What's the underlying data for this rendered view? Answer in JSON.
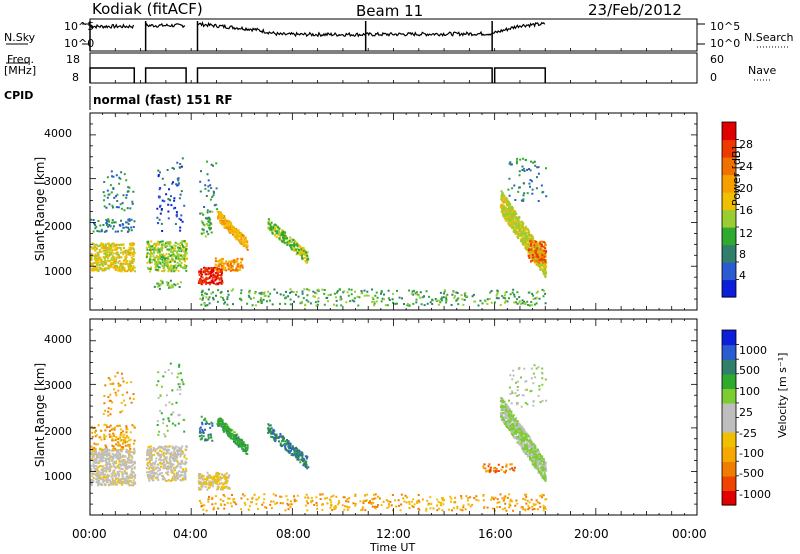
{
  "header": {
    "station": "Kodiak (fitACF)",
    "beam": "Beam 11",
    "date": "23/Feb/2012"
  },
  "side_labels": {
    "nsky": "N.Sky",
    "freq": "Freq.",
    "freq_unit": "[MHz]",
    "cpid": "CPID",
    "nsearch": "N.Search",
    "nave": "Nave"
  },
  "cpid_text": "normal (fast) 151 RF",
  "chart_data": [
    {
      "type": "line",
      "panel": "noise",
      "left_axis_label": "N.Sky",
      "right_axis_label": "N.Search",
      "left_ticks": [
        "10^5",
        "10^0"
      ],
      "right_ticks": [
        "10^5",
        "10^0"
      ],
      "x_range_hours": [
        0,
        24
      ],
      "segments_hours": [
        [
          0.0,
          1.75
        ],
        [
          2.2,
          3.8
        ],
        [
          4.25,
          10.9
        ],
        [
          10.9,
          15.9
        ],
        [
          15.9,
          18.0
        ]
      ],
      "nsky_level_fraction_by_hour": [
        [
          0.0,
          0.82
        ],
        [
          1.75,
          0.82
        ],
        [
          2.2,
          0.85
        ],
        [
          3.8,
          0.85
        ],
        [
          4.25,
          0.9
        ],
        [
          6.5,
          0.72
        ],
        [
          7.5,
          0.55
        ],
        [
          10.9,
          0.55
        ],
        [
          15.9,
          0.58
        ],
        [
          17.0,
          0.85
        ],
        [
          18.0,
          0.9
        ]
      ]
    },
    {
      "type": "line",
      "panel": "frequency",
      "left_axis_label": "Freq. [MHz]",
      "right_axis_label": "Nave",
      "left_ticks": [
        "18",
        "8"
      ],
      "right_ticks": [
        "60",
        "0"
      ],
      "x_range_hours": [
        0,
        24
      ],
      "freq_mhz": 13,
      "nave_segments_hours": [
        [
          0.0,
          1.75
        ],
        [
          2.2,
          3.8
        ],
        [
          4.25,
          15.9
        ],
        [
          16.0,
          18.0
        ]
      ]
    },
    {
      "type": "heatmap",
      "panel": "power",
      "xlabel": "",
      "ylabel": "Slant Range [km]",
      "xlim_hours": [
        0,
        24
      ],
      "ylim_km": [
        0,
        4500
      ],
      "yticks": [
        1000,
        2000,
        3000,
        4000
      ],
      "colorbar_label": "Power [dB]",
      "colorbar_ticks": [
        "4",
        "8",
        "12",
        "16",
        "20",
        "24",
        "28"
      ],
      "colorbar_colors": [
        "#0b1fd8",
        "#2a5bd0",
        "#2f7f6a",
        "#2faa2f",
        "#9acd32",
        "#f0c000",
        "#f6a000",
        "#f07000",
        "#ee3a00",
        "#e00000"
      ],
      "scatter_regions": [
        {
          "t0": 0.0,
          "t1": 1.75,
          "r0": 900,
          "r1": 1550,
          "density": 0.9,
          "level": 5
        },
        {
          "t0": 0.0,
          "t1": 1.75,
          "r0": 1800,
          "r1": 2100,
          "density": 0.3,
          "level": 2
        },
        {
          "t0": 0.5,
          "t1": 1.7,
          "r0": 2300,
          "r1": 3200,
          "density": 0.12,
          "level": 2
        },
        {
          "t0": 2.2,
          "t1": 3.8,
          "r0": 900,
          "r1": 1600,
          "density": 0.75,
          "level": 4
        },
        {
          "t0": 2.4,
          "t1": 3.6,
          "r0": 500,
          "r1": 700,
          "density": 0.3,
          "level": 3
        },
        {
          "t0": 2.6,
          "t1": 3.7,
          "r0": 1800,
          "r1": 3500,
          "density": 0.1,
          "level": 1
        },
        {
          "t0": 4.25,
          "t1": 5.2,
          "r0": 600,
          "r1": 1000,
          "density": 0.95,
          "level": 9
        },
        {
          "t0": 4.9,
          "t1": 6.0,
          "r0": 900,
          "r1": 1200,
          "density": 0.8,
          "level": 6
        },
        {
          "t0": 4.3,
          "t1": 4.8,
          "r0": 1700,
          "r1": 2300,
          "density": 0.35,
          "level": 3
        },
        {
          "t0": 4.3,
          "t1": 5.0,
          "r0": 2300,
          "r1": 3500,
          "density": 0.08,
          "level": 2
        },
        {
          "t0": 5.0,
          "t1": 6.2,
          "r0": 1500,
          "r1": 2200,
          "band": true,
          "density": 0.7,
          "level": 6
        },
        {
          "t0": 7.0,
          "t1": 8.6,
          "r0": 1200,
          "r1": 2000,
          "band": true,
          "density": 0.45,
          "level": 4
        },
        {
          "t0": 4.3,
          "t1": 18.0,
          "r0": 120,
          "r1": 500,
          "density": 0.18,
          "level": 3
        },
        {
          "t0": 16.2,
          "t1": 18.0,
          "r0": 1000,
          "r1": 2500,
          "band": true,
          "density": 0.7,
          "level": 5
        },
        {
          "t0": 16.5,
          "t1": 18.0,
          "r0": 2500,
          "r1": 3500,
          "density": 0.1,
          "level": 2
        },
        {
          "t0": 17.3,
          "t1": 18.0,
          "r0": 1100,
          "r1": 1600,
          "density": 0.8,
          "level": 7
        }
      ]
    },
    {
      "type": "heatmap",
      "panel": "velocity",
      "xlabel": "Time UT",
      "ylabel": "Slant Range [km]",
      "xlim_hours": [
        0,
        24
      ],
      "ylim_km": [
        0,
        4500
      ],
      "yticks": [
        1000,
        2000,
        3000,
        4000
      ],
      "xticks": [
        "00:00",
        "04:00",
        "08:00",
        "12:00",
        "16:00",
        "20:00",
        "00:00"
      ],
      "colorbar_label": "Velocity [m s⁻¹]",
      "colorbar_ticks": [
        "-1000",
        "-500",
        "-100",
        "-25",
        "25",
        "100",
        "500",
        "1000"
      ],
      "colorbar_colors": [
        "#e00000",
        "#ee4400",
        "#f07c00",
        "#f6a800",
        "#f0c000",
        "#bebebe",
        "#bebebe",
        "#7ccd32",
        "#2faa2f",
        "#2f7f6a",
        "#2a5bd0",
        "#0b1fd8"
      ],
      "scatter_regions": [
        {
          "t0": 0.0,
          "t1": 1.75,
          "r0": 700,
          "r1": 1550,
          "density": 0.95,
          "level": 5
        },
        {
          "t0": 0.0,
          "t1": 1.75,
          "r0": 1500,
          "r1": 2100,
          "density": 0.3,
          "level": 3
        },
        {
          "t0": 0.5,
          "t1": 1.7,
          "r0": 2300,
          "r1": 3300,
          "density": 0.1,
          "level": 3
        },
        {
          "t0": 2.2,
          "t1": 3.8,
          "r0": 800,
          "r1": 1600,
          "density": 0.8,
          "level": 5
        },
        {
          "t0": 2.6,
          "t1": 3.7,
          "r0": 1800,
          "r1": 3500,
          "density": 0.08,
          "level": 7
        },
        {
          "t0": 4.25,
          "t1": 5.5,
          "r0": 600,
          "r1": 1000,
          "density": 0.9,
          "level": 5
        },
        {
          "t0": 4.3,
          "t1": 4.8,
          "r0": 1700,
          "r1": 2300,
          "density": 0.35,
          "level": 9
        },
        {
          "t0": 5.0,
          "t1": 6.2,
          "r0": 1500,
          "r1": 2200,
          "band": true,
          "density": 0.7,
          "level": 8
        },
        {
          "t0": 7.0,
          "t1": 8.6,
          "r0": 1200,
          "r1": 2000,
          "band": true,
          "density": 0.4,
          "level": 9
        },
        {
          "t0": 4.3,
          "t1": 18.0,
          "r0": 120,
          "r1": 500,
          "density": 0.18,
          "level": 3
        },
        {
          "t0": 15.5,
          "t1": 16.8,
          "r0": 1000,
          "r1": 1200,
          "density": 0.4,
          "level": 2
        },
        {
          "t0": 16.2,
          "t1": 18.0,
          "r0": 1000,
          "r1": 2500,
          "band": true,
          "density": 0.7,
          "level": 6
        },
        {
          "t0": 16.5,
          "t1": 18.0,
          "r0": 2500,
          "r1": 3500,
          "density": 0.1,
          "level": 6
        }
      ]
    }
  ]
}
